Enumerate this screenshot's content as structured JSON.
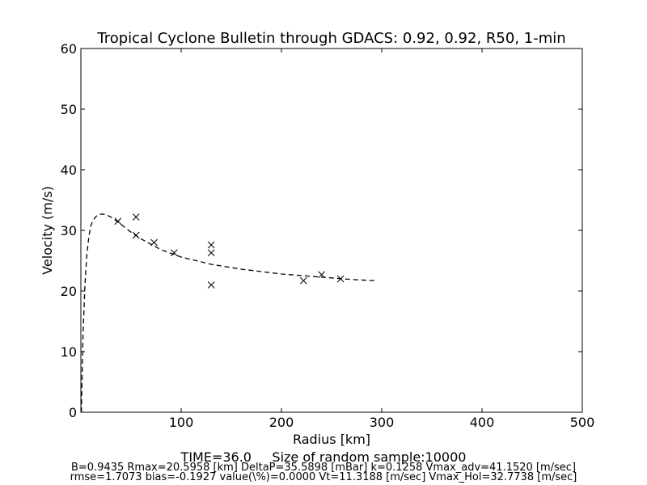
{
  "chart_data": {
    "type": "scatter",
    "title": "Tropical Cyclone Bulletin through GDACS: 0.92, 0.92, R50, 1-min",
    "xlabel": "Radius [km]",
    "ylabel": "Velocity (m/s)",
    "xlim": [
      0,
      500
    ],
    "ylim": [
      0,
      60
    ],
    "xticks": [
      100,
      200,
      300,
      400,
      500
    ],
    "yticks": [
      0,
      10,
      20,
      30,
      40,
      50,
      60
    ],
    "grid": false,
    "series": [
      {
        "marker": "x",
        "x": [
          37,
          55,
          55,
          73,
          93,
          130,
          130,
          130,
          222,
          240,
          259
        ],
        "y": [
          31.5,
          32.2,
          29.2,
          28.0,
          26.3,
          27.6,
          26.3,
          21.0,
          21.7,
          22.7,
          22.0
        ]
      },
      {
        "style": "dashed",
        "x": [
          0.5,
          1,
          2,
          4,
          6,
          8,
          10,
          12,
          15,
          18,
          21,
          25,
          30,
          40,
          50,
          60,
          80,
          100,
          130,
          160,
          200,
          240,
          270,
          295
        ],
        "y": [
          0,
          4,
          12,
          21,
          26,
          29,
          30.8,
          31.6,
          32.3,
          32.6,
          32.7,
          32.6,
          32.2,
          31.0,
          29.7,
          28.6,
          26.8,
          25.6,
          24.4,
          23.6,
          22.8,
          22.3,
          21.9,
          21.7
        ]
      }
    ]
  },
  "footer": {
    "line1": "TIME=36.0     Size of random sample:10000",
    "line2": "B=0.9435 Rmax=20.5958 [km]  DeltaP=35.5898 [mBar] k=0.1258 Vmax_adv=41.1520 [m/sec]",
    "line3": "rmse=1.7073 bias=-0.1927 value(\\%)=0.0000 Vt=11.3188 [m/sec] Vmax_Hol=32.7738 [m/sec]"
  }
}
